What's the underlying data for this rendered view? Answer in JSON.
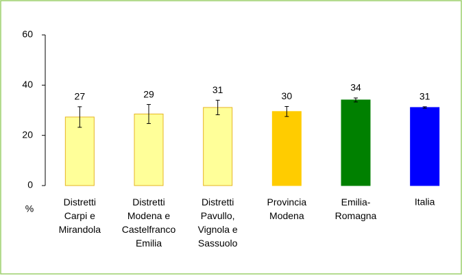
{
  "chart_data": {
    "type": "bar",
    "categories": [
      "Distretti\nCarpi e\nMirandola",
      "Distretti\nModena e\nCastelfranco\nEmilia",
      "Distretti\nPavullo,\nVignola e\nSassuolo",
      "Provincia\nModena",
      "Emilia-\nRomagna",
      "Italia"
    ],
    "values": [
      27.3,
      28.5,
      31.1,
      29.5,
      34.1,
      31.1
    ],
    "value_labels": [
      "27",
      "29",
      "31",
      "30",
      "34",
      "31"
    ],
    "errors": [
      4.1,
      3.8,
      2.9,
      2.0,
      0.8,
      0.3
    ],
    "colors": [
      "#ffff99",
      "#ffff99",
      "#ffff99",
      "#ffcc00",
      "#008000",
      "#0000ff"
    ],
    "edgecolors": [
      "#e6b422",
      "#e6b422",
      "#e6b422",
      "#ffcc00",
      "#008000",
      "#0000ff"
    ],
    "ylabel": "%",
    "ylim": [
      0,
      60
    ],
    "yticks": [
      0,
      20,
      40,
      60
    ],
    "grid": false
  }
}
